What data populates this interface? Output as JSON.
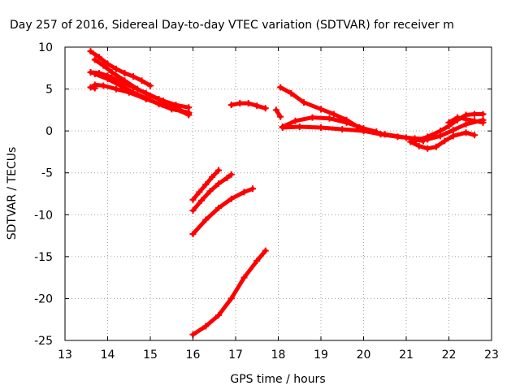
{
  "chart_data": {
    "type": "scatter",
    "title": "Day 257 of 2016, Sidereal Day-to-day VTEC variation (SDTVAR) for receiver m",
    "xlabel": "GPS time / hours",
    "ylabel": "SDTVAR / TECUs",
    "xlim": [
      13,
      23
    ],
    "ylim": [
      -25,
      10
    ],
    "xticks": [
      "13",
      "14",
      "15",
      "16",
      "17",
      "18",
      "19",
      "20",
      "21",
      "22",
      "23"
    ],
    "yticks": [
      "10",
      "5",
      "0",
      "-5",
      "-10",
      "-15",
      "-20",
      "-25"
    ],
    "grid": true,
    "series_color": "#ff0000",
    "series": [
      {
        "x": [
          13.6,
          13.8,
          14.0,
          14.2,
          14.4,
          14.6,
          14.8,
          15.0
        ],
        "y": [
          9.5,
          8.8,
          8.0,
          7.4,
          6.9,
          6.5,
          6.0,
          5.4
        ]
      },
      {
        "x": [
          13.6,
          13.8,
          14.0,
          14.3,
          14.6,
          14.9,
          15.2,
          15.5,
          15.9
        ],
        "y": [
          7.0,
          6.9,
          6.6,
          5.9,
          5.2,
          4.5,
          3.8,
          2.9,
          1.9
        ]
      },
      {
        "x": [
          13.7,
          13.9,
          14.1,
          14.4,
          14.7,
          15.0,
          15.3,
          15.6,
          15.9
        ],
        "y": [
          8.5,
          7.8,
          7.0,
          6.0,
          5.0,
          4.2,
          3.6,
          3.1,
          2.8
        ]
      },
      {
        "x": [
          13.7,
          14.0,
          14.3,
          14.6,
          14.9,
          15.2,
          15.5,
          15.9
        ],
        "y": [
          6.8,
          6.2,
          5.4,
          4.6,
          3.9,
          3.2,
          2.6,
          2.2
        ]
      },
      {
        "x": [
          13.6,
          13.7
        ],
        "y": [
          5.2,
          5.1
        ]
      },
      {
        "x": [
          13.7,
          13.9,
          14.2,
          14.5,
          14.9,
          15.3,
          15.7,
          15.9
        ],
        "y": [
          5.5,
          5.4,
          5.0,
          4.6,
          3.8,
          3.1,
          2.5,
          2.0
        ]
      },
      {
        "x": [
          16.0,
          16.15,
          16.3,
          16.45,
          16.6
        ],
        "y": [
          -8.2,
          -7.3,
          -6.4,
          -5.5,
          -4.7
        ]
      },
      {
        "x": [
          16.0,
          16.2,
          16.4,
          16.6,
          16.8,
          16.9
        ],
        "y": [
          -9.5,
          -8.3,
          -7.2,
          -6.3,
          -5.6,
          -5.2
        ]
      },
      {
        "x": [
          16.0,
          16.3,
          16.6,
          16.9,
          17.2,
          17.4
        ],
        "y": [
          -12.3,
          -10.6,
          -9.2,
          -8.1,
          -7.3,
          -6.9
        ]
      },
      {
        "x": [
          16.0,
          16.3,
          16.6,
          16.9,
          17.2,
          17.5,
          17.7
        ],
        "y": [
          -24.3,
          -23.3,
          -22.0,
          -20.0,
          -17.5,
          -15.5,
          -14.3
        ]
      },
      {
        "x": [
          16.9,
          17.1,
          17.3,
          17.5,
          17.7
        ],
        "y": [
          3.1,
          3.3,
          3.3,
          3.0,
          2.7
        ]
      },
      {
        "x": [
          17.95,
          18.05
        ],
        "y": [
          2.5,
          1.7
        ]
      },
      {
        "x": [
          18.05,
          18.3,
          18.6,
          19.0,
          19.3,
          19.6,
          19.9
        ],
        "y": [
          5.2,
          4.5,
          3.4,
          2.6,
          2.0,
          1.3,
          0.4
        ]
      },
      {
        "x": [
          18.1,
          18.5,
          19.0,
          19.5,
          20.0,
          20.5,
          21.0,
          21.4
        ],
        "y": [
          0.4,
          0.5,
          0.4,
          0.2,
          0.0,
          -0.4,
          -0.8,
          -1.2
        ]
      },
      {
        "x": [
          18.1,
          18.4,
          18.8,
          19.2,
          19.6,
          20.0,
          20.3
        ],
        "y": [
          0.5,
          1.2,
          1.6,
          1.5,
          1.0,
          0.3,
          -0.1
        ]
      },
      {
        "x": [
          20.0,
          20.4,
          20.8,
          21.2,
          21.5,
          21.8,
          22.1,
          22.4,
          22.8
        ],
        "y": [
          0.0,
          -0.4,
          -0.7,
          -0.9,
          -1.0,
          -0.6,
          0.1,
          0.8,
          1.3
        ]
      },
      {
        "x": [
          21.1,
          21.3,
          21.5,
          21.7,
          21.9,
          22.1,
          22.4,
          22.6
        ],
        "y": [
          -1.3,
          -1.8,
          -2.1,
          -1.9,
          -1.2,
          -0.6,
          -0.2,
          -0.5
        ]
      },
      {
        "x": [
          21.2,
          21.5,
          21.8,
          22.0,
          22.2,
          22.4,
          22.6,
          22.8
        ],
        "y": [
          -1.2,
          -0.7,
          0.0,
          0.6,
          1.3,
          1.9,
          2.0,
          2.0
        ]
      },
      {
        "x": [
          22.0,
          22.2,
          22.4,
          22.6,
          22.8
        ],
        "y": [
          1.0,
          1.6,
          1.4,
          1.2,
          1.0
        ]
      }
    ]
  }
}
